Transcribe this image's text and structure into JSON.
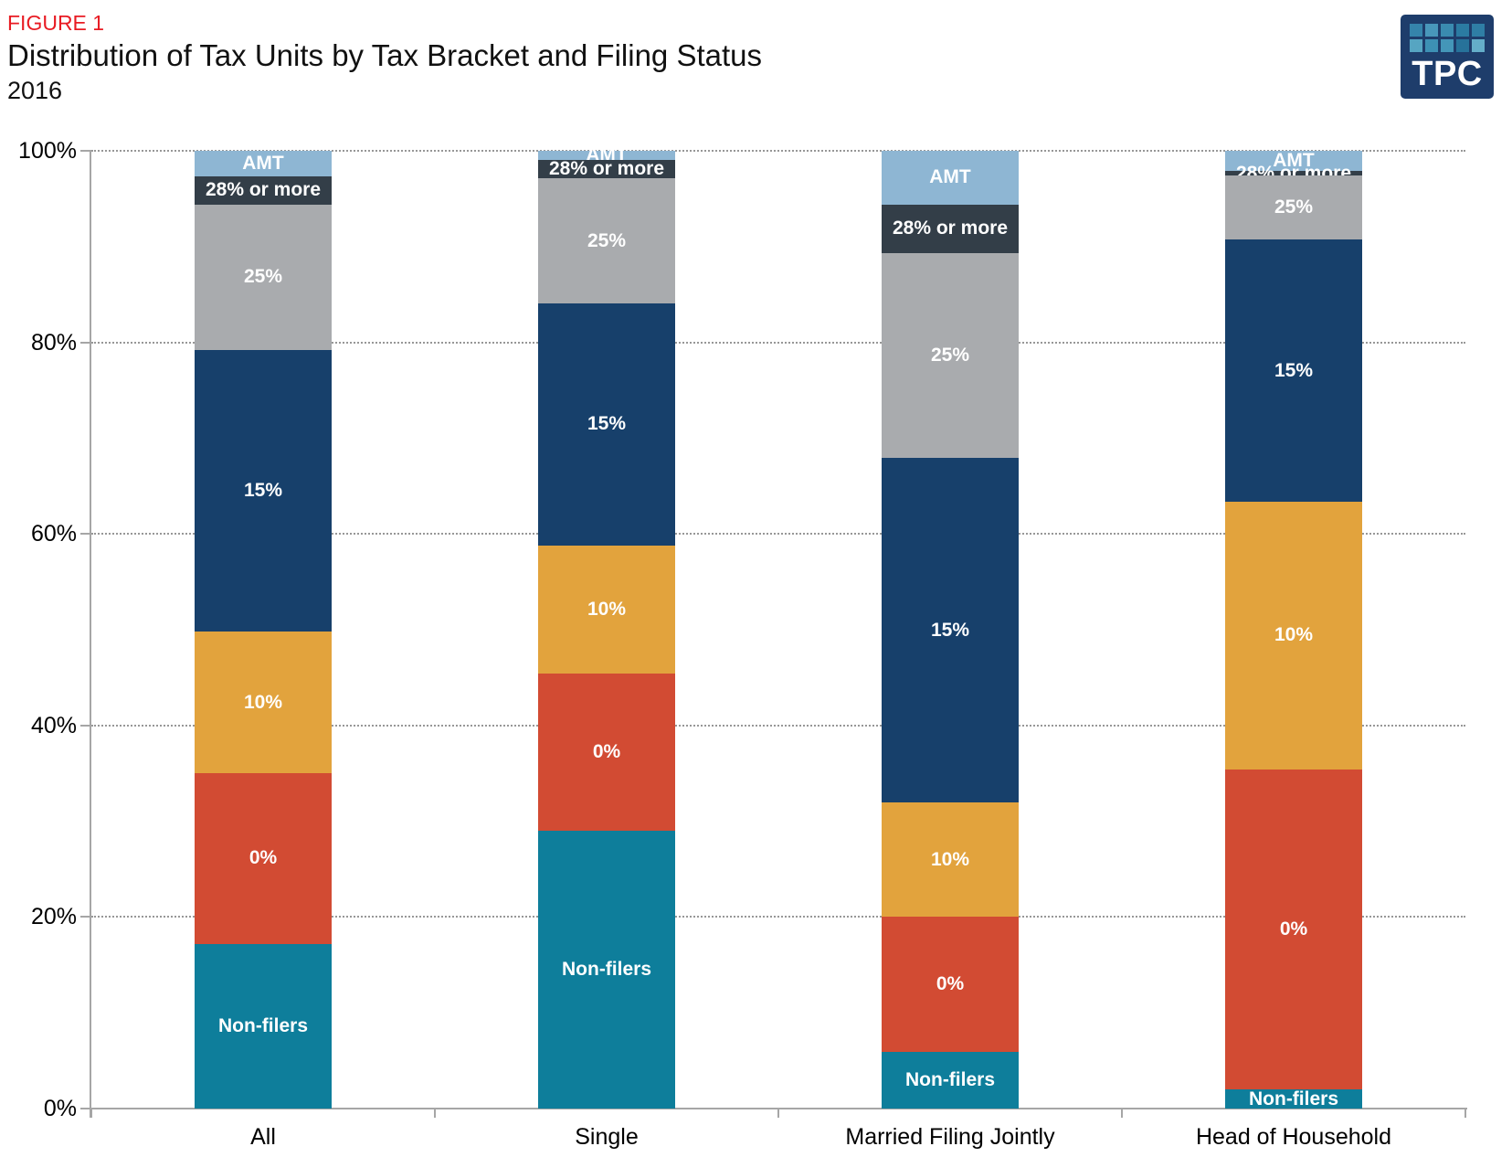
{
  "header": {
    "figure_label": "FIGURE 1",
    "title": "Distribution of Tax Units by Tax Bracket and Filing Status",
    "subtitle": "2016"
  },
  "logo": {
    "text": "TPC",
    "background": "#1E3D6B",
    "square_colors": [
      "#3584AB",
      "#4897BA",
      "#3A8BB0",
      "#2B7BA2",
      "#2F7EA5",
      "#56A5C2",
      "#3D90B4",
      "#4496B8",
      "#27729A",
      "#64AEC9"
    ]
  },
  "chart_data": {
    "type": "bar",
    "subtype": "stacked-percent-column",
    "title": "Distribution of Tax Units by Tax Bracket and Filing Status",
    "xlabel": "",
    "ylabel": "",
    "ylim": [
      0,
      100
    ],
    "ytick_labels": [
      "0%",
      "20%",
      "40%",
      "60%",
      "80%",
      "100%"
    ],
    "grid": "horizontal-dotted-every-20pct",
    "legend_position": "none (series labeled inside segments)",
    "categories": [
      "All",
      "Single",
      "Married Filing Jointly",
      "Head of Household"
    ],
    "series": [
      {
        "name": "Non-filers",
        "color": "#0E7E9B",
        "values": [
          17.2,
          29.0,
          5.9,
          2.0
        ]
      },
      {
        "name": "0%",
        "color": "#D24B33",
        "values": [
          17.8,
          16.4,
          14.1,
          33.4
        ]
      },
      {
        "name": "10%",
        "color": "#E2A33D",
        "values": [
          14.8,
          13.4,
          12.0,
          28.0
        ]
      },
      {
        "name": "15%",
        "color": "#17406B",
        "values": [
          29.4,
          25.3,
          35.9,
          27.3
        ]
      },
      {
        "name": "25%",
        "color": "#A9ABAE",
        "values": [
          15.2,
          13.0,
          21.4,
          6.7
        ]
      },
      {
        "name": "28% or more",
        "color": "#333E48",
        "values": [
          2.9,
          1.9,
          5.1,
          0.5
        ]
      },
      {
        "name": "AMT",
        "color": "#8EB6D3",
        "values": [
          2.7,
          1.0,
          5.6,
          2.1
        ]
      }
    ]
  },
  "colors": {
    "figure_label": "#E81B23",
    "axis": "#A6A6A6",
    "gridline": "#979797",
    "segment_label_text": "#FFFFFF"
  }
}
